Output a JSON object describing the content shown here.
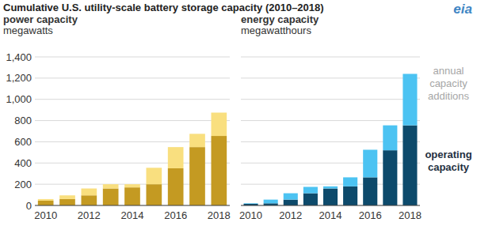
{
  "title": "Cumulative U.S. utility-scale battery storage capacity (2010–2018)",
  "logo": "eia",
  "chart_data": [
    {
      "type": "bar",
      "stacked": true,
      "grid": true,
      "title": "power capacity",
      "ylabel": "megawatts",
      "categories": [
        "2010",
        null,
        "2012",
        null,
        "2014",
        null,
        "2016",
        null,
        "2018"
      ],
      "ylim": [
        0,
        1400
      ],
      "yticks": [
        0,
        200,
        400,
        600,
        800,
        {
          "value": 1000,
          "label": "1,000"
        },
        {
          "value": 1200,
          "label": "1,200"
        },
        {
          "value": 1400,
          "label": "1,400"
        }
      ],
      "series": [
        {
          "color": "#c49a22",
          "values": [
            45,
            60,
            95,
            160,
            170,
            200,
            350,
            550,
            655
          ]
        },
        {
          "color": "#f9df7f",
          "values": [
            15,
            35,
            65,
            40,
            30,
            155,
            200,
            125,
            220
          ]
        }
      ]
    },
    {
      "type": "bar",
      "stacked": true,
      "grid": true,
      "tick_labels": "x",
      "legend": "right",
      "title": "energy capacity",
      "ylabel": "megawatthours",
      "categories": [
        "2010",
        null,
        "2012",
        null,
        "2014",
        null,
        "2016",
        null,
        "2018"
      ],
      "ylim": [
        0,
        1400
      ],
      "yticks": [
        0,
        200,
        400,
        600,
        800,
        1000,
        1200,
        1400
      ],
      "series": [
        {
          "name": "operating capacity",
          "color": "#0d4a6b",
          "values": [
            15,
            20,
            55,
            115,
            160,
            180,
            265,
            520,
            755
          ]
        },
        {
          "name": "annual capacity additions",
          "color": "#4cc3f2",
          "values": [
            5,
            35,
            60,
            60,
            20,
            85,
            260,
            235,
            485
          ]
        }
      ]
    }
  ]
}
